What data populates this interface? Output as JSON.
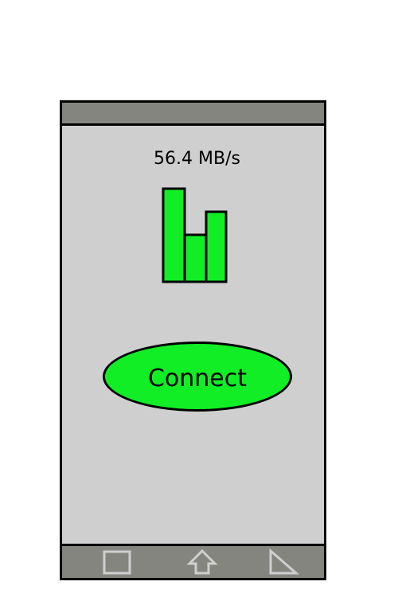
{
  "speed": {
    "label": "56.4 MB/s"
  },
  "signal": {
    "levels": [
      4,
      2,
      3
    ],
    "max_level": 4,
    "bar_color": "#11ee26"
  },
  "connect_button": {
    "label": "Connect",
    "color": "#11ee26"
  },
  "colors": {
    "screen": "#cfcfcf",
    "bars": "#858580",
    "nav_icons": "#cfcfcf"
  },
  "nav": {
    "icons": [
      "recent-apps-icon",
      "home-icon",
      "back-icon"
    ]
  }
}
